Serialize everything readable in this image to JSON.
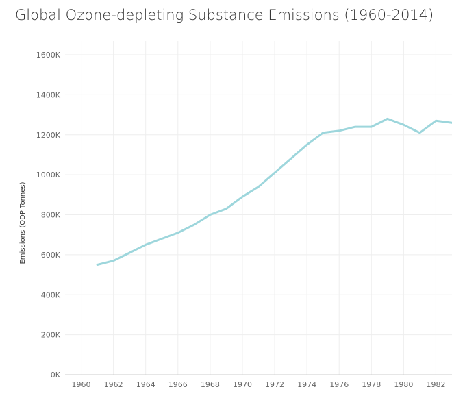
{
  "chart_data": {
    "type": "line",
    "title": "Global Ozone-depleting Substance Emissions (1960-2014)",
    "xlabel": "",
    "ylabel": "Emissions (ODP Tonnes)",
    "xlim": [
      1959,
      1983
    ],
    "ylim": [
      0,
      1600000
    ],
    "x_ticks": [
      1960,
      1962,
      1964,
      1966,
      1968,
      1970,
      1972,
      1974,
      1976,
      1978,
      1980,
      1982
    ],
    "x_tick_labels": [
      "1960",
      "1962",
      "1964",
      "1966",
      "1968",
      "1970",
      "1972",
      "1974",
      "1976",
      "1978",
      "1980",
      "1982"
    ],
    "y_ticks": [
      0,
      200000,
      400000,
      600000,
      800000,
      1000000,
      1200000,
      1400000,
      1600000
    ],
    "y_tick_labels": [
      "0K",
      "200K",
      "400K",
      "600K",
      "800K",
      "1000K",
      "1200K",
      "1400K",
      "1600K"
    ],
    "grid": true,
    "series": [
      {
        "color": "#9dd6dc",
        "x": [
          1961,
          1962,
          1963,
          1964,
          1965,
          1966,
          1967,
          1968,
          1969,
          1970,
          1971,
          1972,
          1973,
          1974,
          1975,
          1976,
          1977,
          1978,
          1979,
          1980,
          1981,
          1982,
          1983
        ],
        "values": [
          550000,
          570000,
          610000,
          650000,
          680000,
          710000,
          750000,
          800000,
          830000,
          890000,
          940000,
          1010000,
          1080000,
          1150000,
          1210000,
          1220000,
          1240000,
          1240000,
          1280000,
          1250000,
          1210000,
          1270000,
          1260000
        ]
      }
    ]
  }
}
